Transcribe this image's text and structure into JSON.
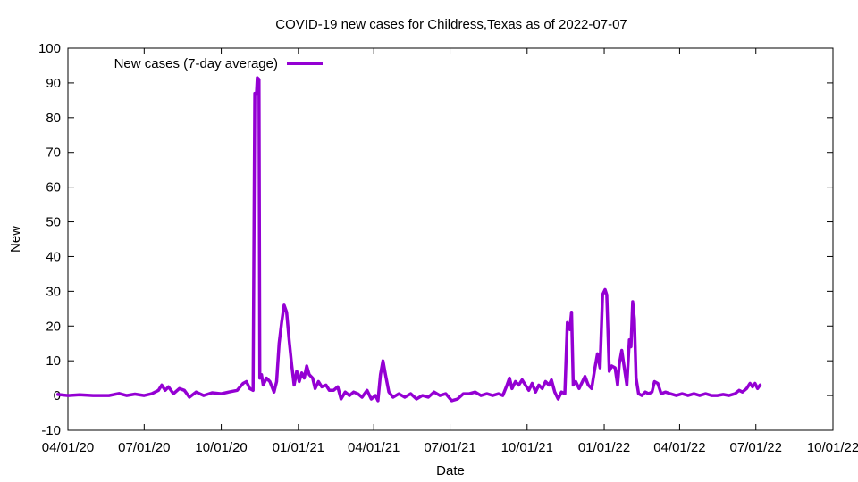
{
  "chart_data": {
    "type": "line",
    "title": "COVID-19 new cases for Childress,Texas as of 2022-07-07",
    "xlabel": "Date",
    "ylabel": "New",
    "xlim": [
      "2020-04-01",
      "2022-10-01"
    ],
    "ylim": [
      -10,
      100
    ],
    "grid": false,
    "legend_position": "top-left",
    "x_ticks": [
      "04/01/20",
      "07/01/20",
      "10/01/20",
      "01/01/21",
      "04/01/21",
      "07/01/21",
      "10/01/21",
      "01/01/22",
      "04/01/22",
      "07/01/22",
      "10/01/22"
    ],
    "y_ticks": [
      -10,
      0,
      10,
      20,
      30,
      40,
      50,
      60,
      70,
      80,
      90,
      100
    ],
    "series": [
      {
        "name": "New cases (7-day average)",
        "color": "#9400d3",
        "points": [
          [
            "2020-03-20",
            0.3
          ],
          [
            "2020-04-01",
            0.0
          ],
          [
            "2020-04-15",
            0.2
          ],
          [
            "2020-05-01",
            0.0
          ],
          [
            "2020-05-20",
            0.0
          ],
          [
            "2020-06-01",
            0.6
          ],
          [
            "2020-06-10",
            0.0
          ],
          [
            "2020-06-20",
            0.4
          ],
          [
            "2020-07-01",
            0.0
          ],
          [
            "2020-07-10",
            0.5
          ],
          [
            "2020-07-18",
            1.5
          ],
          [
            "2020-07-22",
            3.0
          ],
          [
            "2020-07-26",
            1.5
          ],
          [
            "2020-07-30",
            2.5
          ],
          [
            "2020-08-05",
            0.5
          ],
          [
            "2020-08-12",
            2.0
          ],
          [
            "2020-08-18",
            1.5
          ],
          [
            "2020-08-24",
            -0.5
          ],
          [
            "2020-09-01",
            1.0
          ],
          [
            "2020-09-10",
            0.0
          ],
          [
            "2020-09-20",
            0.8
          ],
          [
            "2020-10-01",
            0.5
          ],
          [
            "2020-10-10",
            1.0
          ],
          [
            "2020-10-20",
            1.5
          ],
          [
            "2020-10-27",
            3.5
          ],
          [
            "2020-10-31",
            4.0
          ],
          [
            "2020-11-04",
            2.0
          ],
          [
            "2020-11-08",
            1.5
          ],
          [
            "2020-11-10",
            87.0
          ],
          [
            "2020-11-12",
            87.0
          ],
          [
            "2020-11-13",
            91.5
          ],
          [
            "2020-11-15",
            91.0
          ],
          [
            "2020-11-16",
            5.0
          ],
          [
            "2020-11-18",
            6.0
          ],
          [
            "2020-11-20",
            3.0
          ],
          [
            "2020-11-24",
            5.0
          ],
          [
            "2020-11-28",
            4.0
          ],
          [
            "2020-12-03",
            1.0
          ],
          [
            "2020-12-06",
            4.0
          ],
          [
            "2020-12-09",
            15.0
          ],
          [
            "2020-12-12",
            21.0
          ],
          [
            "2020-12-15",
            26.0
          ],
          [
            "2020-12-18",
            24.0
          ],
          [
            "2020-12-21",
            16.0
          ],
          [
            "2020-12-24",
            9.0
          ],
          [
            "2020-12-27",
            3.0
          ],
          [
            "2020-12-30",
            7.0
          ],
          [
            "2021-01-02",
            4.0
          ],
          [
            "2021-01-05",
            6.5
          ],
          [
            "2021-01-08",
            5.0
          ],
          [
            "2021-01-11",
            8.5
          ],
          [
            "2021-01-14",
            6.0
          ],
          [
            "2021-01-18",
            5.0
          ],
          [
            "2021-01-21",
            2.0
          ],
          [
            "2021-01-25",
            4.0
          ],
          [
            "2021-01-29",
            2.5
          ],
          [
            "2021-02-03",
            3.0
          ],
          [
            "2021-02-07",
            1.5
          ],
          [
            "2021-02-12",
            1.5
          ],
          [
            "2021-02-17",
            2.5
          ],
          [
            "2021-02-21",
            -1.0
          ],
          [
            "2021-02-26",
            1.0
          ],
          [
            "2021-03-03",
            0.0
          ],
          [
            "2021-03-08",
            1.0
          ],
          [
            "2021-03-13",
            0.5
          ],
          [
            "2021-03-18",
            -0.5
          ],
          [
            "2021-03-24",
            1.5
          ],
          [
            "2021-03-29",
            -1.0
          ],
          [
            "2021-04-03",
            0.0
          ],
          [
            "2021-04-06",
            -1.5
          ],
          [
            "2021-04-09",
            6.0
          ],
          [
            "2021-04-12",
            10.0
          ],
          [
            "2021-04-15",
            6.0
          ],
          [
            "2021-04-19",
            1.0
          ],
          [
            "2021-04-24",
            -0.5
          ],
          [
            "2021-05-01",
            0.5
          ],
          [
            "2021-05-08",
            -0.5
          ],
          [
            "2021-05-15",
            0.5
          ],
          [
            "2021-05-22",
            -1.0
          ],
          [
            "2021-05-29",
            0.0
          ],
          [
            "2021-06-05",
            -0.5
          ],
          [
            "2021-06-12",
            1.0
          ],
          [
            "2021-06-19",
            0.0
          ],
          [
            "2021-06-26",
            0.5
          ],
          [
            "2021-07-03",
            -1.5
          ],
          [
            "2021-07-10",
            -1.0
          ],
          [
            "2021-07-17",
            0.5
          ],
          [
            "2021-07-24",
            0.5
          ],
          [
            "2021-07-31",
            1.0
          ],
          [
            "2021-08-07",
            0.0
          ],
          [
            "2021-08-14",
            0.5
          ],
          [
            "2021-08-21",
            0.0
          ],
          [
            "2021-08-28",
            0.5
          ],
          [
            "2021-09-02",
            0.0
          ],
          [
            "2021-09-07",
            3.0
          ],
          [
            "2021-09-10",
            5.0
          ],
          [
            "2021-09-13",
            2.0
          ],
          [
            "2021-09-17",
            4.0
          ],
          [
            "2021-09-21",
            3.0
          ],
          [
            "2021-09-25",
            4.5
          ],
          [
            "2021-09-29",
            3.0
          ],
          [
            "2021-10-03",
            1.5
          ],
          [
            "2021-10-07",
            3.5
          ],
          [
            "2021-10-11",
            1.0
          ],
          [
            "2021-10-15",
            3.0
          ],
          [
            "2021-10-19",
            2.0
          ],
          [
            "2021-10-23",
            4.0
          ],
          [
            "2021-10-27",
            3.0
          ],
          [
            "2021-10-30",
            4.5
          ],
          [
            "2021-11-03",
            1.0
          ],
          [
            "2021-11-07",
            -1.0
          ],
          [
            "2021-11-11",
            1.0
          ],
          [
            "2021-11-15",
            0.5
          ],
          [
            "2021-11-18",
            21.0
          ],
          [
            "2021-11-21",
            19.0
          ],
          [
            "2021-11-23",
            24.0
          ],
          [
            "2021-11-25",
            3.0
          ],
          [
            "2021-11-28",
            4.0
          ],
          [
            "2021-12-02",
            2.0
          ],
          [
            "2021-12-06",
            4.0
          ],
          [
            "2021-12-09",
            5.5
          ],
          [
            "2021-12-13",
            3.0
          ],
          [
            "2021-12-17",
            2.0
          ],
          [
            "2021-12-21",
            8.0
          ],
          [
            "2021-12-24",
            12.0
          ],
          [
            "2021-12-27",
            8.0
          ],
          [
            "2021-12-30",
            29.0
          ],
          [
            "2022-01-02",
            30.5
          ],
          [
            "2022-01-04",
            29.0
          ],
          [
            "2022-01-07",
            7.0
          ],
          [
            "2022-01-10",
            8.5
          ],
          [
            "2022-01-14",
            8.0
          ],
          [
            "2022-01-17",
            3.0
          ],
          [
            "2022-01-19",
            9.0
          ],
          [
            "2022-01-22",
            13.0
          ],
          [
            "2022-01-25",
            8.0
          ],
          [
            "2022-01-28",
            3.0
          ],
          [
            "2022-01-31",
            16.0
          ],
          [
            "2022-02-02",
            14.0
          ],
          [
            "2022-02-04",
            27.0
          ],
          [
            "2022-02-06",
            22.0
          ],
          [
            "2022-02-08",
            5.0
          ],
          [
            "2022-02-11",
            0.5
          ],
          [
            "2022-02-15",
            0.0
          ],
          [
            "2022-02-19",
            1.0
          ],
          [
            "2022-02-23",
            0.5
          ],
          [
            "2022-02-27",
            1.0
          ],
          [
            "2022-03-02",
            4.0
          ],
          [
            "2022-03-06",
            3.5
          ],
          [
            "2022-03-10",
            0.5
          ],
          [
            "2022-03-15",
            1.0
          ],
          [
            "2022-03-21",
            0.5
          ],
          [
            "2022-03-28",
            0.0
          ],
          [
            "2022-04-04",
            0.5
          ],
          [
            "2022-04-11",
            0.0
          ],
          [
            "2022-04-18",
            0.5
          ],
          [
            "2022-04-25",
            0.0
          ],
          [
            "2022-05-02",
            0.5
          ],
          [
            "2022-05-09",
            0.0
          ],
          [
            "2022-05-16",
            0.0
          ],
          [
            "2022-05-23",
            0.3
          ],
          [
            "2022-05-30",
            0.0
          ],
          [
            "2022-06-06",
            0.5
          ],
          [
            "2022-06-11",
            1.5
          ],
          [
            "2022-06-15",
            1.0
          ],
          [
            "2022-06-20",
            2.0
          ],
          [
            "2022-06-24",
            3.5
          ],
          [
            "2022-06-27",
            2.5
          ],
          [
            "2022-06-30",
            3.5
          ],
          [
            "2022-07-03",
            2.0
          ],
          [
            "2022-07-06",
            3.0
          ]
        ]
      }
    ]
  }
}
